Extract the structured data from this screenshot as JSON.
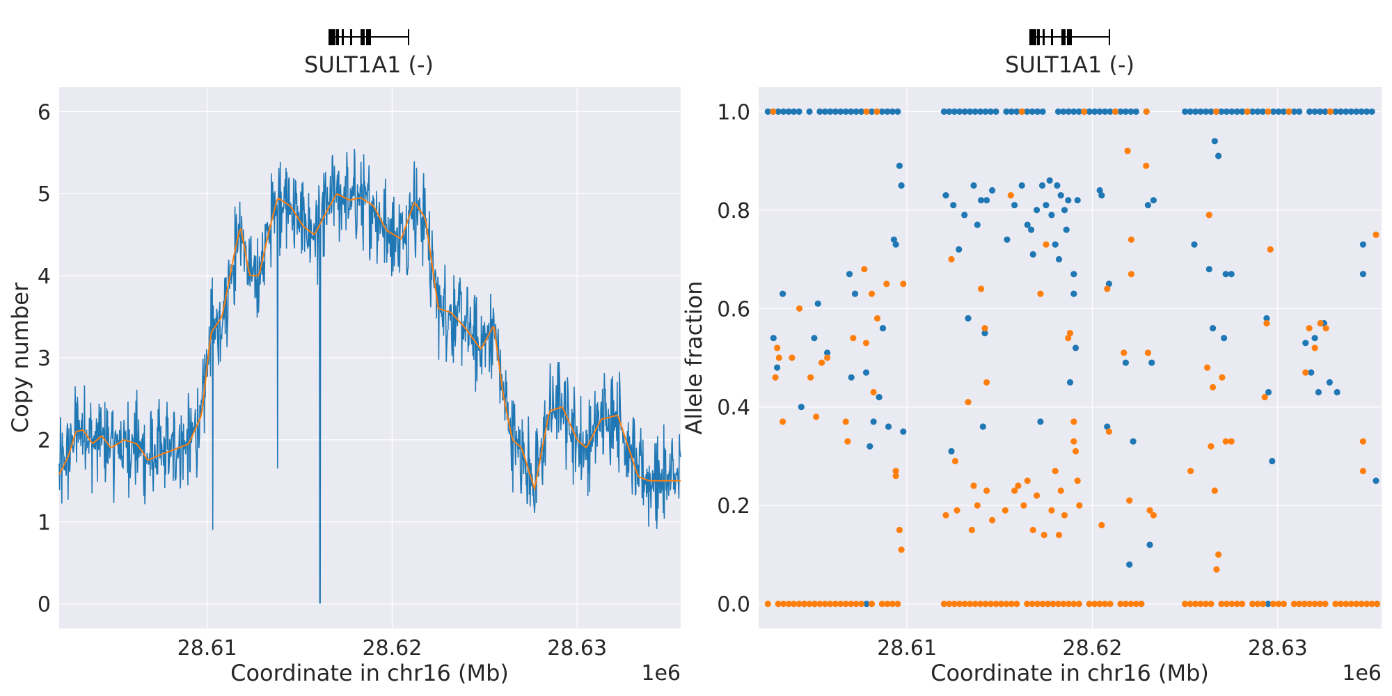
{
  "colors": {
    "background": "#eaeaf2",
    "grid": "#ffffff",
    "series_blue": "#1f77b4",
    "series_orange": "#ff7f0e",
    "text": "#262626"
  },
  "chart_data": [
    {
      "type": "line",
      "gene_label": "SULT1A1 (-)",
      "xlabel": "Coordinate in chr16 (Mb)",
      "ylabel": "Copy number",
      "x_offset_text": "1e6",
      "xlim": [
        28.602,
        28.6356
      ],
      "ylim": [
        -0.3,
        6.3
      ],
      "xticks": [
        28.61,
        28.62,
        28.63
      ],
      "xtick_labels": [
        "28.61",
        "28.62",
        "28.63"
      ],
      "yticks": [
        0,
        1,
        2,
        3,
        4,
        5,
        6
      ],
      "ytick_labels": [
        "0",
        "1",
        "2",
        "3",
        "4",
        "5",
        "6"
      ],
      "grid": true,
      "series": [
        {
          "x_range": [
            28.602,
            28.6356
          ],
          "smooth_anchors": [
            [
              28.602,
              1.58
            ],
            [
              28.6025,
              1.8
            ],
            [
              28.6029,
              2.1
            ],
            [
              28.6033,
              2.12
            ],
            [
              28.6038,
              1.95
            ],
            [
              28.6043,
              2.05
            ],
            [
              28.6048,
              1.9
            ],
            [
              28.6055,
              2.0
            ],
            [
              28.6062,
              1.95
            ],
            [
              28.6068,
              1.75
            ],
            [
              28.6075,
              1.82
            ],
            [
              28.6082,
              1.88
            ],
            [
              28.609,
              1.95
            ],
            [
              28.6097,
              2.3
            ],
            [
              28.6102,
              3.3
            ],
            [
              28.6108,
              3.5
            ],
            [
              28.6115,
              4.3
            ],
            [
              28.6118,
              4.6
            ],
            [
              28.6123,
              4.0
            ],
            [
              28.6128,
              4.0
            ],
            [
              28.6133,
              4.5
            ],
            [
              28.6138,
              4.95
            ],
            [
              28.6145,
              4.85
            ],
            [
              28.6152,
              4.6
            ],
            [
              28.6158,
              4.5
            ],
            [
              28.6165,
              4.8
            ],
            [
              28.617,
              5.0
            ],
            [
              28.6177,
              4.92
            ],
            [
              28.6183,
              4.95
            ],
            [
              28.619,
              4.85
            ],
            [
              28.6197,
              4.55
            ],
            [
              28.6205,
              4.45
            ],
            [
              28.6212,
              4.9
            ],
            [
              28.6218,
              4.7
            ],
            [
              28.6225,
              3.6
            ],
            [
              28.6232,
              3.55
            ],
            [
              28.624,
              3.35
            ],
            [
              28.6248,
              3.1
            ],
            [
              28.6255,
              3.4
            ],
            [
              28.626,
              2.55
            ],
            [
              28.6265,
              2.0
            ],
            [
              28.627,
              1.9
            ],
            [
              28.6277,
              1.4
            ],
            [
              28.6285,
              2.35
            ],
            [
              28.6292,
              2.4
            ],
            [
              28.63,
              2.0
            ],
            [
              28.6305,
              1.9
            ],
            [
              28.6313,
              2.25
            ],
            [
              28.6322,
              2.3
            ],
            [
              28.6333,
              1.55
            ],
            [
              28.6339,
              1.5
            ]
          ],
          "spikes": [
            [
              28.6138,
              1.65
            ],
            [
              28.6161,
              0.01
            ],
            [
              28.6103,
              0.9
            ]
          ]
        }
      ]
    },
    {
      "type": "scatter",
      "gene_label": "SULT1A1 (-)",
      "xlabel": "Coordinate in chr16 (Mb)",
      "ylabel": "Allele fraction",
      "x_offset_text": "1e6",
      "xlim": [
        28.602,
        28.6356
      ],
      "ylim": [
        -0.05,
        1.05
      ],
      "xticks": [
        28.61,
        28.62,
        28.63
      ],
      "xtick_labels": [
        "28.61",
        "28.62",
        "28.63"
      ],
      "yticks": [
        0.0,
        0.2,
        0.4,
        0.6,
        0.8,
        1.0
      ],
      "ytick_labels": [
        "0.0",
        "0.2",
        "0.4",
        "0.6",
        "0.8",
        "1.0"
      ],
      "grid": true,
      "series": [
        {
          "color": "#1f77b4",
          "band_ranges": [
            [
              28.6025,
              28.6097
            ],
            [
              28.612,
              28.623
            ],
            [
              28.625,
              28.6356
            ]
          ],
          "points": [
            [
              28.6028,
              0.54
            ],
            [
              28.603,
              0.48
            ],
            [
              28.6033,
              0.63
            ],
            [
              28.6043,
              0.4
            ],
            [
              28.605,
              0.54
            ],
            [
              28.6052,
              0.61
            ],
            [
              28.6057,
              0.51
            ],
            [
              28.6069,
              0.67
            ],
            [
              28.607,
              0.46
            ],
            [
              28.6072,
              0.63
            ],
            [
              28.6078,
              0.47
            ],
            [
              28.608,
              0.32
            ],
            [
              28.6082,
              0.37
            ],
            [
              28.6085,
              0.42
            ],
            [
              28.6087,
              0.56
            ],
            [
              28.609,
              0.36
            ],
            [
              28.6093,
              0.74
            ],
            [
              28.6094,
              0.73
            ],
            [
              28.6096,
              0.89
            ],
            [
              28.6097,
              0.85
            ],
            [
              28.6098,
              0.35
            ],
            [
              28.6121,
              0.83
            ],
            [
              28.6124,
              0.31
            ],
            [
              28.6125,
              0.81
            ],
            [
              28.6128,
              0.72
            ],
            [
              28.6131,
              0.79
            ],
            [
              28.6133,
              0.58
            ],
            [
              28.6136,
              0.85
            ],
            [
              28.6138,
              0.77
            ],
            [
              28.614,
              0.82
            ],
            [
              28.6141,
              0.36
            ],
            [
              28.6142,
              0.55
            ],
            [
              28.6143,
              0.82
            ],
            [
              28.6146,
              0.84
            ],
            [
              28.6154,
              0.74
            ],
            [
              28.6158,
              0.81
            ],
            [
              28.6162,
              0.85
            ],
            [
              28.6165,
              0.77
            ],
            [
              28.6167,
              0.76
            ],
            [
              28.6168,
              0.71
            ],
            [
              28.617,
              0.8
            ],
            [
              28.6172,
              0.37
            ],
            [
              28.6173,
              0.85
            ],
            [
              28.6175,
              0.81
            ],
            [
              28.6177,
              0.86
            ],
            [
              28.6178,
              0.79
            ],
            [
              28.618,
              0.73
            ],
            [
              28.6181,
              0.85
            ],
            [
              28.6182,
              0.7
            ],
            [
              28.6183,
              0.83
            ],
            [
              28.6185,
              0.8
            ],
            [
              28.6186,
              0.76
            ],
            [
              28.6187,
              0.82
            ],
            [
              28.6188,
              0.45
            ],
            [
              28.619,
              0.67
            ],
            [
              28.619,
              0.63
            ],
            [
              28.6191,
              0.52
            ],
            [
              28.6192,
              0.82
            ],
            [
              28.6204,
              0.84
            ],
            [
              28.6205,
              0.83
            ],
            [
              28.6208,
              0.36
            ],
            [
              28.6209,
              0.65
            ],
            [
              28.6218,
              0.49
            ],
            [
              28.622,
              0.08
            ],
            [
              28.6222,
              0.33
            ],
            [
              28.623,
              0.81
            ],
            [
              28.6232,
              0.49
            ],
            [
              28.6231,
              0.12
            ],
            [
              28.6233,
              0.82
            ],
            [
              28.6255,
              0.73
            ],
            [
              28.6263,
              0.68
            ],
            [
              28.6265,
              0.56
            ],
            [
              28.6266,
              0.94
            ],
            [
              28.6268,
              0.91
            ],
            [
              28.6271,
              0.54
            ],
            [
              28.6272,
              0.67
            ],
            [
              28.6275,
              0.67
            ],
            [
              28.6294,
              0.58
            ],
            [
              28.6295,
              0.43
            ],
            [
              28.6297,
              0.29
            ],
            [
              28.6315,
              0.53
            ],
            [
              28.6318,
              0.47
            ],
            [
              28.632,
              0.54
            ],
            [
              28.6322,
              0.43
            ],
            [
              28.6325,
              0.57
            ],
            [
              28.6328,
              0.45
            ],
            [
              28.6332,
              0.43
            ],
            [
              28.6346,
              0.73
            ],
            [
              28.6346,
              0.67
            ],
            [
              28.6353,
              0.25
            ]
          ]
        },
        {
          "color": "#ff7f0e",
          "band_ranges": [
            [
              28.6025,
              28.6097
            ],
            [
              28.612,
              28.623
            ],
            [
              28.625,
              28.6356
            ]
          ],
          "points": [
            [
              28.6029,
              0.46
            ],
            [
              28.603,
              0.52
            ],
            [
              28.6031,
              0.5
            ],
            [
              28.6033,
              0.37
            ],
            [
              28.6038,
              0.5
            ],
            [
              28.6042,
              0.6
            ],
            [
              28.6048,
              0.46
            ],
            [
              28.6051,
              0.38
            ],
            [
              28.6054,
              0.49
            ],
            [
              28.6057,
              0.5
            ],
            [
              28.6067,
              0.37
            ],
            [
              28.6068,
              0.33
            ],
            [
              28.6071,
              0.54
            ],
            [
              28.6077,
              0.68
            ],
            [
              28.6078,
              0.53
            ],
            [
              28.6081,
              0.63
            ],
            [
              28.6082,
              0.43
            ],
            [
              28.6084,
              0.58
            ],
            [
              28.6089,
              0.65
            ],
            [
              28.6094,
              0.27
            ],
            [
              28.6094,
              0.26
            ],
            [
              28.6096,
              0.15
            ],
            [
              28.6097,
              0.11
            ],
            [
              28.6098,
              0.65
            ],
            [
              28.6121,
              0.18
            ],
            [
              28.6124,
              0.7
            ],
            [
              28.6126,
              0.29
            ],
            [
              28.6127,
              0.19
            ],
            [
              28.6133,
              0.41
            ],
            [
              28.6135,
              0.15
            ],
            [
              28.6136,
              0.24
            ],
            [
              28.6138,
              0.2
            ],
            [
              28.614,
              0.64
            ],
            [
              28.6142,
              0.56
            ],
            [
              28.6143,
              0.45
            ],
            [
              28.6143,
              0.23
            ],
            [
              28.6146,
              0.17
            ],
            [
              28.6153,
              0.19
            ],
            [
              28.6156,
              0.83
            ],
            [
              28.6158,
              0.23
            ],
            [
              28.616,
              0.24
            ],
            [
              28.6163,
              0.2
            ],
            [
              28.6165,
              0.25
            ],
            [
              28.6168,
              0.15
            ],
            [
              28.617,
              0.22
            ],
            [
              28.6172,
              0.63
            ],
            [
              28.6174,
              0.14
            ],
            [
              28.6175,
              0.73
            ],
            [
              28.6178,
              0.19
            ],
            [
              28.618,
              0.27
            ],
            [
              28.6182,
              0.14
            ],
            [
              28.6183,
              0.23
            ],
            [
              28.6185,
              0.18
            ],
            [
              28.6187,
              0.54
            ],
            [
              28.6188,
              0.55
            ],
            [
              28.619,
              0.37
            ],
            [
              28.619,
              0.33
            ],
            [
              28.6191,
              0.31
            ],
            [
              28.6192,
              0.25
            ],
            [
              28.6193,
              0.2
            ],
            [
              28.6205,
              0.16
            ],
            [
              28.6208,
              0.64
            ],
            [
              28.6209,
              0.35
            ],
            [
              28.6217,
              0.51
            ],
            [
              28.6219,
              0.92
            ],
            [
              28.622,
              0.21
            ],
            [
              28.6221,
              0.74
            ],
            [
              28.6221,
              0.67
            ],
            [
              28.6229,
              0.89
            ],
            [
              28.623,
              0.51
            ],
            [
              28.6231,
              0.19
            ],
            [
              28.6233,
              0.18
            ],
            [
              28.6253,
              0.27
            ],
            [
              28.6262,
              0.48
            ],
            [
              28.6263,
              0.79
            ],
            [
              28.6264,
              0.32
            ],
            [
              28.6265,
              0.44
            ],
            [
              28.6266,
              0.23
            ],
            [
              28.6267,
              0.07
            ],
            [
              28.6268,
              0.1
            ],
            [
              28.627,
              0.46
            ],
            [
              28.6272,
              0.33
            ],
            [
              28.6275,
              0.33
            ],
            [
              28.6293,
              0.42
            ],
            [
              28.6294,
              0.57
            ],
            [
              28.6296,
              0.72
            ],
            [
              28.6315,
              0.47
            ],
            [
              28.6317,
              0.56
            ],
            [
              28.632,
              0.52
            ],
            [
              28.6323,
              0.57
            ],
            [
              28.6326,
              0.56
            ],
            [
              28.6346,
              0.33
            ],
            [
              28.6346,
              0.27
            ],
            [
              28.6353,
              0.75
            ]
          ]
        }
      ]
    }
  ]
}
